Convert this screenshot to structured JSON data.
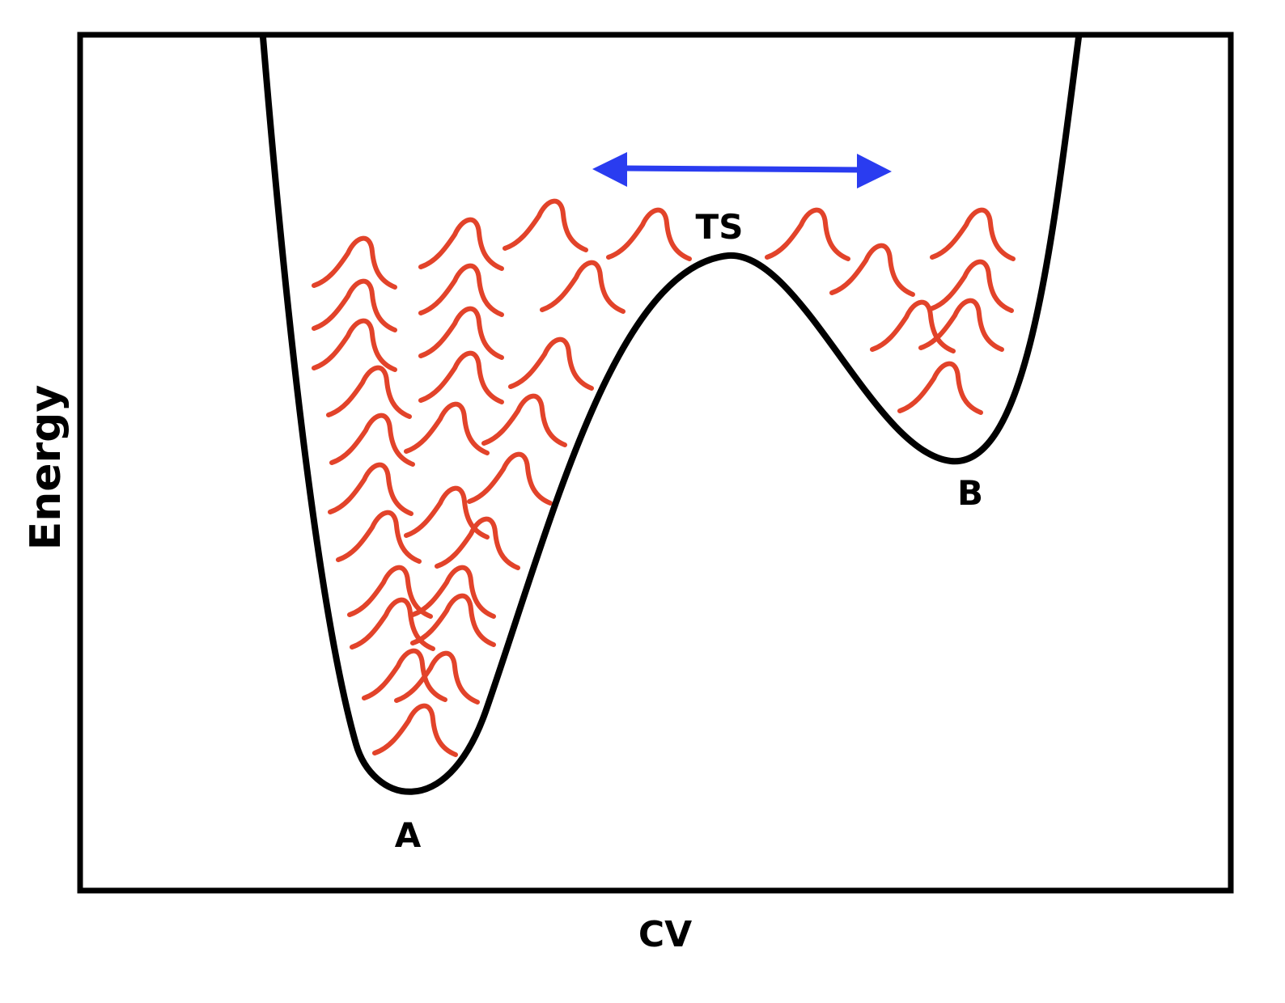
{
  "diagram": {
    "y_axis_label": "Energy",
    "x_axis_label": "CV",
    "labels": {
      "minimum_a": "A",
      "transition_state": "TS",
      "minimum_b": "B"
    },
    "colors": {
      "curve": "#000000",
      "frame": "#000000",
      "bias_gaussians": "#e2432a",
      "arrow": "#2a3cf0"
    },
    "icons": {
      "arrow": "double-headed-arrow"
    }
  }
}
